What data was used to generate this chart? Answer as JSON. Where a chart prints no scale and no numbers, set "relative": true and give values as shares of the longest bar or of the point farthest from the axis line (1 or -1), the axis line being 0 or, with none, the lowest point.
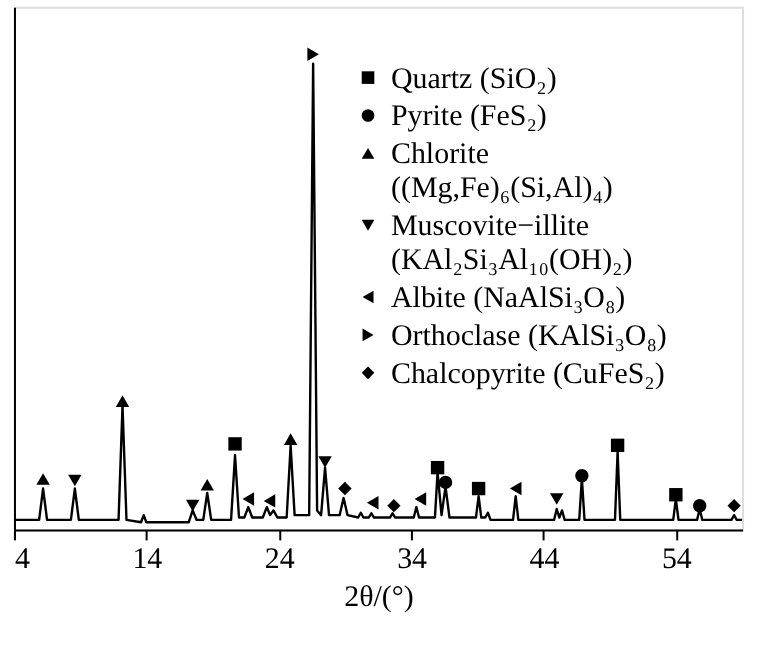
{
  "chart_data": {
    "type": "line",
    "xlabel": "2θ/(°)",
    "xlim": [
      4,
      59
    ],
    "xticks": [
      4,
      14,
      24,
      34,
      44,
      54
    ],
    "relative": true,
    "tick_labels": "x",
    "grid": false,
    "legend": "top right",
    "line_style": "solid",
    "series": [
      {
        "type": "line",
        "color": "#000000",
        "marker": "none",
        "x": [
          4,
          5.9,
          6.2,
          6.5,
          8.3,
          8.6,
          8.9,
          11.9,
          12.2,
          12.5,
          13.6,
          13.8,
          14.0,
          17.2,
          17.5,
          17.8,
          18.3,
          18.6,
          18.9,
          20.4,
          20.7,
          21.0,
          21.4,
          21.7,
          22.0,
          22.8,
          23.1,
          23.35,
          23.6,
          23.9,
          24.6,
          24.9,
          25.2,
          26.3,
          26.6,
          26.9,
          27.2,
          27.5,
          27.8,
          28.6,
          28.9,
          29.2,
          30.0,
          30.2,
          30.4,
          30.8,
          31.0,
          31.2,
          32.4,
          32.6,
          32.8,
          34.2,
          34.4,
          34.6,
          35.8,
          36.0,
          36.3,
          36.6,
          36.9,
          38.9,
          39.1,
          39.3,
          39.6,
          39.8,
          40.0,
          41.7,
          41.9,
          42.1,
          44.8,
          45.0,
          45.2,
          45.4,
          45.6,
          46.7,
          46.9,
          47.1,
          49.4,
          49.6,
          49.8,
          53.8,
          54.0,
          54.2,
          55.6,
          55.8,
          56.0,
          58.2,
          58.4,
          58.6,
          59
        ],
        "values": [
          0.02,
          0.02,
          0.086,
          0.02,
          0.02,
          0.086,
          0.02,
          0.02,
          0.26,
          0.02,
          0.015,
          0.03,
          0.015,
          0.015,
          0.04,
          0.02,
          0.02,
          0.077,
          0.02,
          0.02,
          0.156,
          0.025,
          0.025,
          0.047,
          0.025,
          0.025,
          0.047,
          0.03,
          0.04,
          0.025,
          0.025,
          0.176,
          0.03,
          0.03,
          0.98,
          0.04,
          0.03,
          0.13,
          0.03,
          0.03,
          0.066,
          0.03,
          0.025,
          0.035,
          0.025,
          0.025,
          0.034,
          0.025,
          0.025,
          0.034,
          0.025,
          0.025,
          0.047,
          0.025,
          0.025,
          0.12,
          0.03,
          0.09,
          0.025,
          0.025,
          0.07,
          0.025,
          0.025,
          0.035,
          0.02,
          0.02,
          0.07,
          0.02,
          0.02,
          0.043,
          0.025,
          0.04,
          0.02,
          0.02,
          0.107,
          0.02,
          0.02,
          0.163,
          0.02,
          0.02,
          0.064,
          0.02,
          0.02,
          0.043,
          0.02,
          0.02,
          0.03,
          0.02,
          0.02
        ]
      },
      {
        "type": "scatter",
        "name": "Quartz (SiO₂)",
        "color": "#000000",
        "marker": "square",
        "x": [
          20.7,
          36.0,
          39.1,
          49.6,
          54.0
        ],
        "values": [
          0.18,
          0.13,
          0.086,
          0.177,
          0.073
        ]
      },
      {
        "type": "scatter",
        "name": "Pyrite (FeS₂)",
        "color": "#000000",
        "marker": "circle",
        "x": [
          36.6,
          46.9,
          55.8
        ],
        "values": [
          0.099,
          0.113,
          0.05
        ]
      },
      {
        "type": "scatter",
        "name": "Chlorite ((Mg,Fe)₆(Si,Al)₄)",
        "color": "#000000",
        "marker": "triangle",
        "x": [
          6.2,
          12.2,
          18.6,
          24.9
        ],
        "values": [
          0.106,
          0.27,
          0.094,
          0.19
        ]
      },
      {
        "type": "scatter",
        "name": "Muscovite−illite (KAl₂Si₃Al₁₀(OH)₂)",
        "color": "#000000",
        "marker": "triangle-down",
        "x": [
          8.6,
          17.5,
          27.5,
          45.0
        ],
        "values": [
          0.103,
          0.05,
          0.142,
          0.064
        ]
      },
      {
        "type": "scatter",
        "name": "Albite (NaAlSi₃O₈)",
        "color": "#000000",
        "marker": "triangle-left",
        "x": [
          21.7,
          23.3,
          31.1,
          34.7,
          41.9
        ],
        "values": [
          0.064,
          0.06,
          0.056,
          0.064,
          0.086
        ]
      },
      {
        "type": "scatter",
        "name": "Orthoclase (KAlSi₃O₈)",
        "color": "#000000",
        "marker": "triangle-right",
        "x": [
          26.6
        ],
        "values": [
          1.0
        ]
      },
      {
        "type": "scatter",
        "name": "Chalcopyrite (CuFeS₂)",
        "color": "#000000",
        "marker": "diamond",
        "x": [
          29.0,
          32.7,
          58.4
        ],
        "values": [
          0.086,
          0.05,
          0.05
        ]
      }
    ]
  }
}
